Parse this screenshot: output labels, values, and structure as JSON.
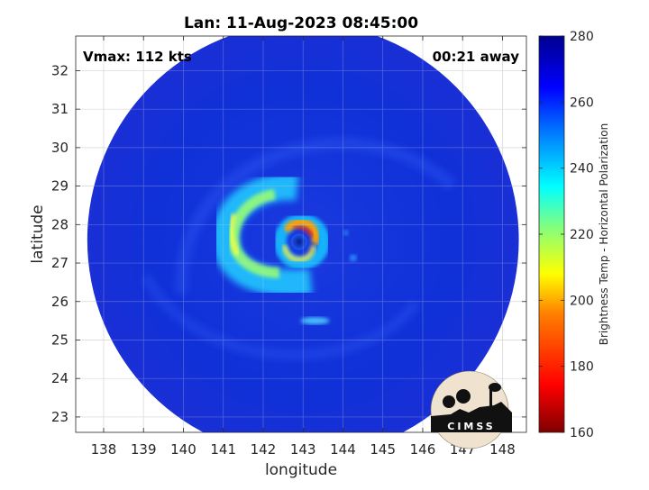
{
  "chart_data": {
    "type": "heatmap",
    "title": "Lan: 11-Aug-2023 08:45:00",
    "xlabel": "longitude",
    "ylabel": "latitude",
    "x_ticks": [
      138,
      139,
      140,
      141,
      142,
      143,
      144,
      145,
      146,
      147,
      148
    ],
    "y_ticks": [
      23,
      24,
      25,
      26,
      27,
      28,
      29,
      30,
      31,
      32
    ],
    "xlim": [
      137.3,
      148.6
    ],
    "ylim": [
      22.6,
      32.9
    ],
    "grid": true,
    "annotations": {
      "vmax": "Vmax: 112 kts",
      "time_away": "00:21 away"
    },
    "colorbar": {
      "label": "Brightness Temp - Horizontal Polarization",
      "ticks": [
        160,
        180,
        200,
        220,
        240,
        260,
        280
      ],
      "range": [
        160,
        280
      ],
      "colormap": [
        "#7f0000",
        "#ff0000",
        "#ff8000",
        "#ffff00",
        "#80ff80",
        "#00ffff",
        "#0080ff",
        "#0000ff",
        "#00008f"
      ]
    },
    "swath": {
      "center_lon": 143.0,
      "center_lat": 27.6,
      "radius_deg": 5.5,
      "background_temp": 262
    },
    "features": [
      {
        "name": "eye",
        "lon": 142.9,
        "lat": 27.55,
        "temp": 255
      },
      {
        "name": "eyewall",
        "lon": 142.9,
        "lat": 27.6,
        "temp_min": 190
      },
      {
        "name": "outer rainband",
        "lon": 141.5,
        "lat": 27.8,
        "temp_min": 230
      },
      {
        "name": "southern cell",
        "lon": 143.3,
        "lat": 25.5,
        "temp_min": 240
      }
    ]
  },
  "logo": {
    "text": "CIMSS"
  }
}
